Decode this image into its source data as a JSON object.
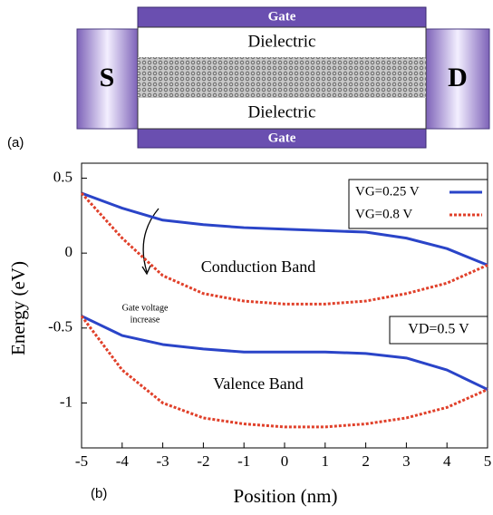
{
  "diagram": {
    "gate_top": "Gate",
    "dielectric_top": "Dielectric",
    "dielectric_bottom": "Dielectric",
    "gate_bottom": "Gate",
    "source": "S",
    "drain": "D",
    "panel": "(a)"
  },
  "chart_data": {
    "type": "line",
    "panel": "(b)",
    "xlabel": "Position (nm)",
    "ylabel": "Energy (eV)",
    "x": [
      -5,
      -4,
      -3,
      -2,
      -1,
      0,
      1,
      2,
      3,
      4,
      5
    ],
    "series": [
      {
        "name": "VG=0.25 V",
        "color": "#2a44c8",
        "dash": false,
        "conduction": [
          0.4,
          0.3,
          0.22,
          0.19,
          0.17,
          0.16,
          0.15,
          0.14,
          0.1,
          0.03,
          -0.08
        ],
        "valence": [
          -0.42,
          -0.55,
          -0.61,
          -0.64,
          -0.66,
          -0.66,
          -0.66,
          -0.67,
          -0.7,
          -0.78,
          -0.91
        ]
      },
      {
        "name": "VG=0.8 V",
        "color": "#e0402a",
        "dash": true,
        "conduction": [
          0.4,
          0.1,
          -0.15,
          -0.27,
          -0.32,
          -0.34,
          -0.34,
          -0.32,
          -0.27,
          -0.2,
          -0.08
        ],
        "valence": [
          -0.42,
          -0.78,
          -1.0,
          -1.1,
          -1.14,
          -1.16,
          -1.16,
          -1.14,
          -1.1,
          -1.03,
          -0.91
        ]
      }
    ],
    "xlim": [
      -5,
      5
    ],
    "ylim": [
      -1.3,
      0.6
    ],
    "xticks": [
      -5,
      -4,
      -3,
      -2,
      -1,
      0,
      1,
      2,
      3,
      4,
      5
    ],
    "yticks": [
      0.5,
      0,
      -0.5,
      -1
    ],
    "annotations": {
      "conduction": "Conduction Band",
      "valence": "Valence Band",
      "arrow_line1": "Gate voltage",
      "arrow_line2": "increase",
      "drain_voltage": "VD=0.5 V"
    }
  }
}
